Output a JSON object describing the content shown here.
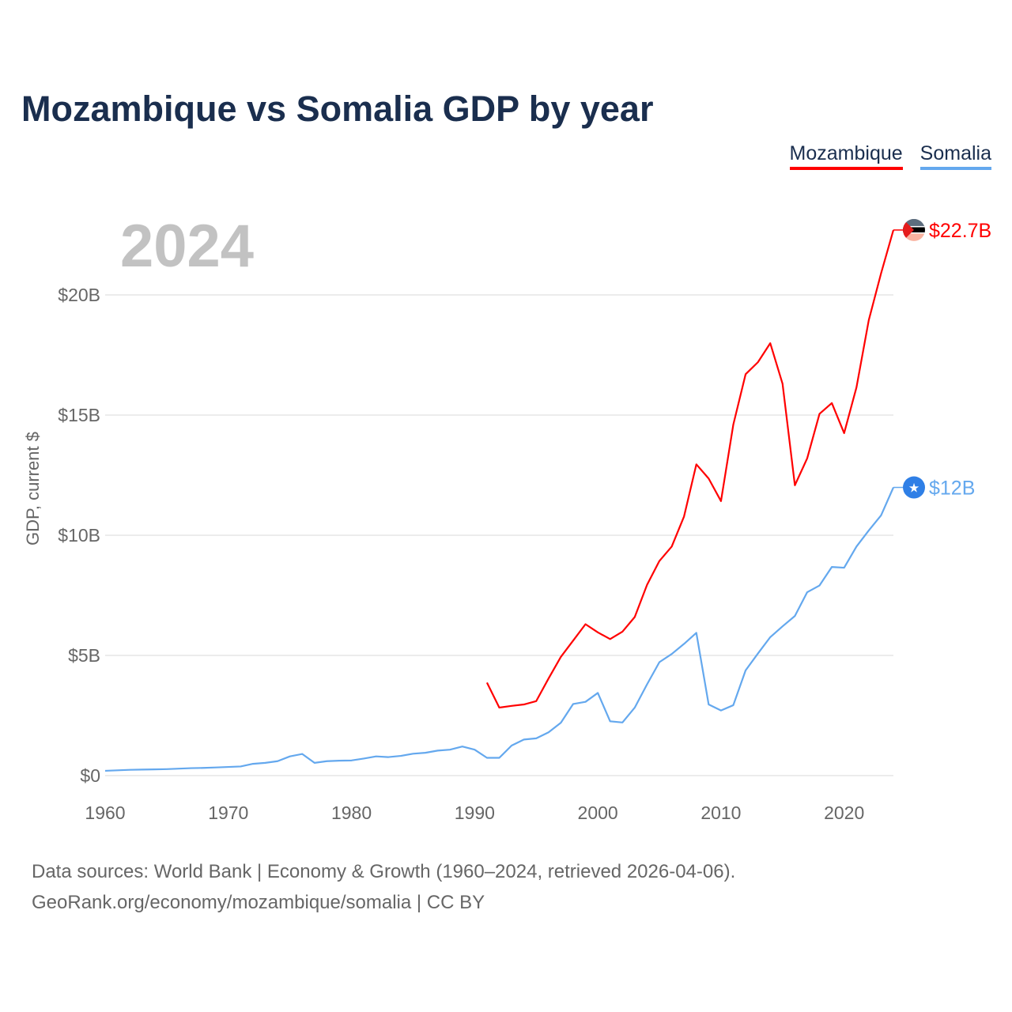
{
  "title": "Mozambique vs Somalia GDP by year",
  "current_year": "2024",
  "source_line1": "Data sources: World Bank | Economy & Growth (1960–2024, retrieved 2026-04-06).",
  "source_line2": "GeoRank.org/economy/mozambique/somalia | CC BY",
  "chart_data": {
    "type": "line",
    "title": "Mozambique vs Somalia GDP by year",
    "xlabel": "",
    "ylabel": "GDP, current $",
    "xlim": [
      1960,
      2024
    ],
    "ylim": [
      0,
      22.7
    ],
    "x_ticks": [
      1960,
      1970,
      1980,
      1990,
      2000,
      2010,
      2020
    ],
    "x_tick_labels": [
      "1960",
      "1970",
      "1980",
      "1990",
      "2000",
      "2010",
      "2020"
    ],
    "y_ticks": [
      0,
      5,
      10,
      15,
      20
    ],
    "y_tick_labels": [
      "$0",
      "$5B",
      "$10B",
      "$15B",
      "$20B"
    ],
    "grid": true,
    "legend_position": "top-right",
    "series": [
      {
        "name": "Mozambique",
        "color": "#ff0000",
        "end_label": "$22.7B",
        "start_year": 1991,
        "values": [
          3.87,
          2.83,
          2.9,
          2.96,
          3.1,
          4.04,
          4.94,
          5.62,
          6.3,
          5.96,
          5.68,
          5.99,
          6.6,
          7.94,
          8.93,
          9.53,
          10.78,
          12.95,
          12.36,
          11.42,
          14.6,
          16.7,
          17.2,
          17.99,
          16.3,
          12.08,
          13.2,
          15.05,
          15.5,
          14.25,
          16.15,
          18.95,
          20.9,
          22.7
        ]
      },
      {
        "name": "Somalia",
        "color": "#64a8ee",
        "end_label": "$12B",
        "start_year": 1960,
        "values": [
          0.2,
          0.22,
          0.24,
          0.25,
          0.26,
          0.27,
          0.29,
          0.31,
          0.32,
          0.34,
          0.36,
          0.38,
          0.49,
          0.53,
          0.6,
          0.8,
          0.9,
          0.53,
          0.6,
          0.62,
          0.63,
          0.71,
          0.8,
          0.77,
          0.82,
          0.91,
          0.95,
          1.04,
          1.08,
          1.21,
          1.08,
          0.74,
          0.74,
          1.25,
          1.5,
          1.55,
          1.8,
          2.2,
          2.98,
          3.07,
          3.44,
          2.26,
          2.21,
          2.83,
          3.8,
          4.72,
          5.06,
          5.48,
          5.94,
          2.96,
          2.71,
          2.93,
          4.38,
          5.08,
          5.76,
          6.21,
          6.64,
          7.63,
          7.91,
          8.68,
          8.65,
          9.53,
          10.2,
          10.83,
          11.99
        ]
      }
    ]
  }
}
